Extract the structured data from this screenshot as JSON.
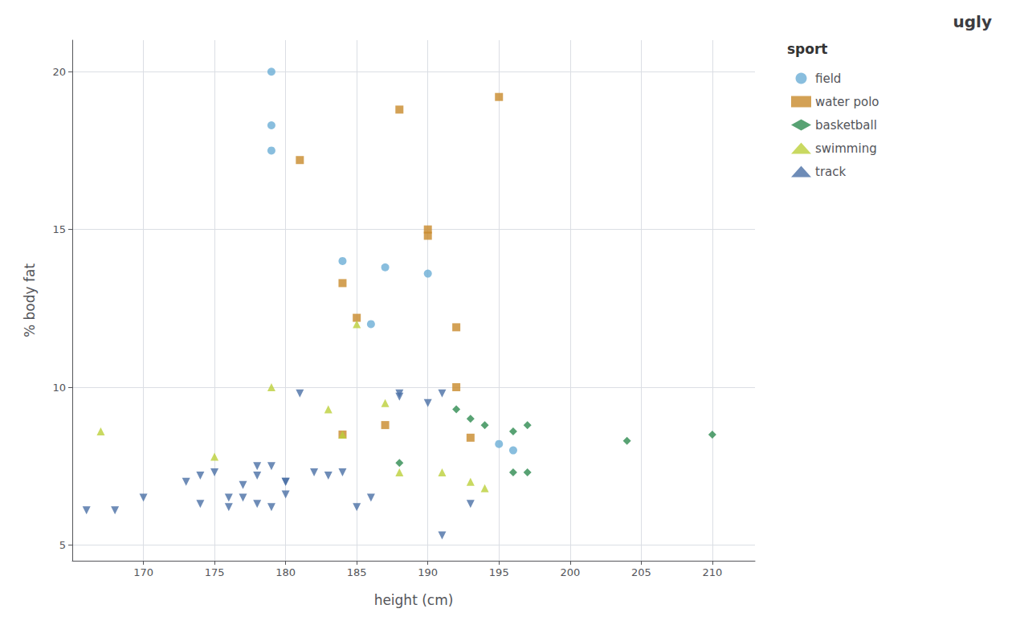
{
  "chart_data": {
    "type": "scatter",
    "title": "ugly",
    "xlabel": "height (cm)",
    "ylabel": "% body fat",
    "legend_title": "sport",
    "legend": "right",
    "grid": true,
    "xlim": [
      165,
      213
    ],
    "ylim": [
      4.5,
      21.0
    ],
    "xticks": [
      170,
      175,
      180,
      185,
      190,
      195,
      200,
      205,
      210
    ],
    "yticks": [
      5,
      10,
      15,
      20
    ],
    "series": [
      {
        "name": "field",
        "color": "#6BAED6",
        "marker": "circle",
        "x": [
          179,
          179,
          179,
          184,
          186,
          187,
          190,
          195,
          196
        ],
        "values": [
          20.0,
          18.3,
          17.5,
          14.0,
          12.0,
          13.8,
          13.6,
          8.2,
          8.0
        ]
      },
      {
        "name": "water polo",
        "color": "#C8892A",
        "marker": "square",
        "x": [
          181,
          184,
          184,
          185,
          187,
          188,
          190,
          190,
          192,
          192,
          193,
          195
        ],
        "values": [
          17.2,
          13.3,
          8.5,
          12.2,
          8.8,
          18.8,
          15.0,
          14.8,
          11.9,
          10.0,
          8.4,
          19.2
        ]
      },
      {
        "name": "basketball",
        "color": "#2E8B50",
        "marker": "diamond",
        "x": [
          188,
          192,
          193,
          194,
          196,
          196,
          197,
          197,
          204,
          210
        ],
        "values": [
          7.6,
          9.3,
          9.0,
          8.8,
          8.6,
          7.3,
          8.8,
          7.3,
          8.3,
          8.5
        ]
      },
      {
        "name": "swimming",
        "color": "#BCCF3A",
        "marker": "triangle",
        "x": [
          167,
          175,
          179,
          183,
          184,
          185,
          187,
          188,
          191,
          193,
          194
        ],
        "values": [
          8.6,
          7.8,
          10.0,
          9.3,
          8.5,
          12.0,
          9.5,
          7.3,
          7.3,
          7.0,
          6.8
        ]
      },
      {
        "name": "track",
        "color": "#4A6FA5",
        "marker": "triangle-down",
        "x": [
          166,
          168,
          170,
          173,
          174,
          174,
          175,
          176,
          176,
          177,
          177,
          178,
          178,
          178,
          179,
          179,
          180,
          180,
          180,
          181,
          182,
          183,
          184,
          185,
          186,
          188,
          188,
          190,
          191,
          191,
          193
        ],
        "values": [
          6.1,
          6.1,
          6.5,
          7.0,
          7.2,
          6.3,
          7.3,
          6.5,
          6.2,
          6.5,
          6.9,
          7.2,
          6.3,
          7.5,
          6.2,
          7.5,
          7.0,
          6.6,
          7.0,
          9.8,
          7.3,
          7.2,
          7.3,
          6.2,
          6.5,
          9.8,
          9.7,
          9.5,
          9.8,
          5.3,
          6.3
        ]
      }
    ]
  }
}
